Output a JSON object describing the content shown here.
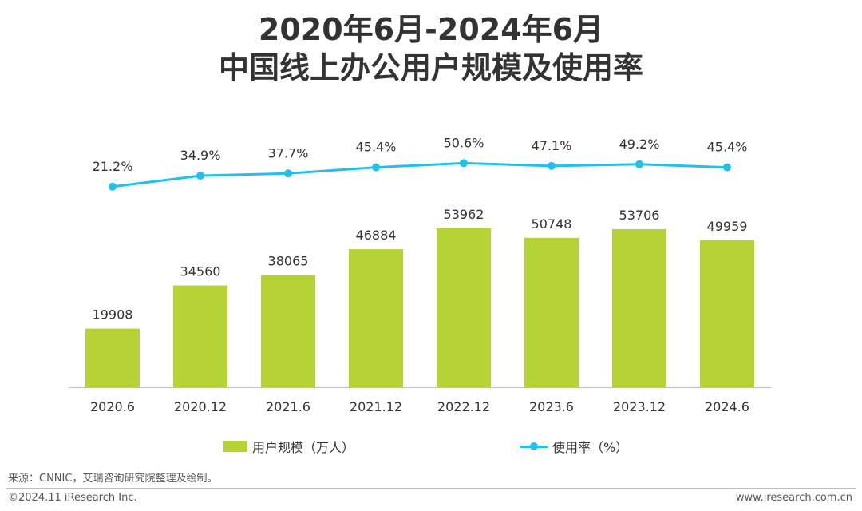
{
  "header": {
    "title_line1": "2020年6月-2024年6月",
    "title_line2": "中国线上办公用户规模及使用率"
  },
  "chart_data": {
    "type": "bar",
    "categories": [
      "2020.6",
      "2020.12",
      "2021.6",
      "2021.12",
      "2022.12",
      "2023.6",
      "2023.12",
      "2024.6"
    ],
    "series": [
      {
        "name": "用户规模（万人）",
        "type": "bar",
        "values": [
          19908,
          34560,
          38065,
          46884,
          53962,
          50748,
          53706,
          49959
        ],
        "labels": [
          "19908",
          "34560",
          "38065",
          "46884",
          "53962",
          "50748",
          "53706",
          "49959"
        ],
        "color": "#b5d334"
      },
      {
        "name": "使用率（%）",
        "type": "line",
        "values": [
          21.2,
          34.9,
          37.7,
          45.4,
          50.6,
          47.1,
          49.2,
          45.4
        ],
        "labels": [
          "21.2%",
          "34.9%",
          "37.7%",
          "45.4%",
          "50.6%",
          "47.1%",
          "49.2%",
          "45.4%"
        ],
        "color": "#1fc1ec"
      }
    ],
    "grid": false,
    "legend_position": "bottom"
  },
  "colors": {
    "bar": "#b5d334",
    "line": "#1fc1ec",
    "axis": "#bfbfbf"
  },
  "footer": {
    "source": "来源：CNNIC，艾瑞咨询研究院整理及绘制。",
    "copyright": "©2024.11 iResearch Inc.",
    "website": "www.iresearch.com.cn"
  }
}
